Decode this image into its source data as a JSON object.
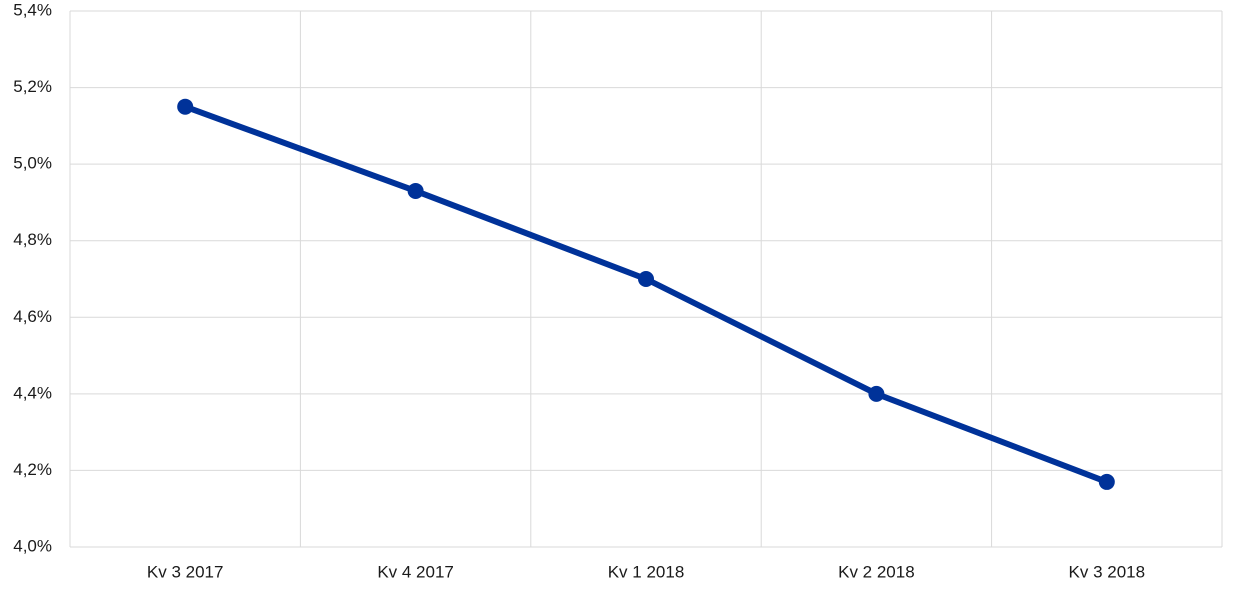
{
  "chart_data": {
    "type": "line",
    "categories": [
      "Kv 3 2017",
      "Kv 4 2017",
      "Kv 1 2018",
      "Kv 2 2018",
      "Kv 3 2018"
    ],
    "values": [
      5.15,
      4.93,
      4.7,
      4.4,
      4.17
    ],
    "color": "#003299",
    "ylim": [
      4.0,
      5.4
    ],
    "yticks": [
      {
        "value": 4.0,
        "label": "4,0%"
      },
      {
        "value": 4.2,
        "label": "4,2%"
      },
      {
        "value": 4.4,
        "label": "4,4%"
      },
      {
        "value": 4.6,
        "label": "4,6%"
      },
      {
        "value": 4.8,
        "label": "4,8%"
      },
      {
        "value": 5.0,
        "label": "5,0%"
      },
      {
        "value": 5.2,
        "label": "5,2%"
      },
      {
        "value": 5.4,
        "label": "5,4%"
      }
    ],
    "grid": true
  }
}
